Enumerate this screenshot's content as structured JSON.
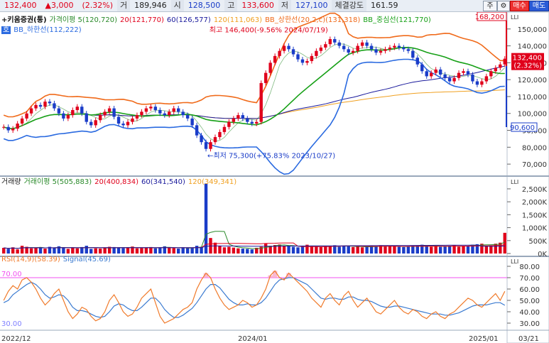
{
  "quote": {
    "price": "132,400",
    "change": "▲3,000",
    "change_pct": "(2.32%)",
    "volume_label": "거",
    "volume": "189,946",
    "open_label": "시",
    "open": "128,500",
    "high_label": "고",
    "high": "133,600",
    "low_label": "저",
    "low": "127,100",
    "strength_label": "체결강도",
    "strength": "161.59",
    "btn_jong": "주",
    "btn_gear": "⚙",
    "btn_buy": "매수",
    "btn_sell": "매도"
  },
  "colors": {
    "up": "#e0001b",
    "down": "#1a3cc8",
    "ma5": "#2a8a2a",
    "ma20": "#e0001b",
    "ma60": "#1a1a9c",
    "ma120": "#f0a020",
    "bb_upper": "#f06a1a",
    "bb_mid": "#16a016",
    "bb_lower": "#2a6ae0",
    "rsi": "#f07a2a",
    "signal": "#3a7ad0",
    "rsi_ref": "#f050f0"
  },
  "price_panel": {
    "title": "+키움증권(통)",
    "legend": [
      {
        "key": "ma5",
        "text": "가격이평 5(120,720)"
      },
      {
        "key": "ma20",
        "text": "20(121,770)"
      },
      {
        "key": "ma60",
        "text": "60(126,577)"
      },
      {
        "key": "ma120",
        "text": "120(111,063)"
      },
      {
        "key": "bb_upper",
        "text": "BB_상한선(20,2,c)(131,318)"
      },
      {
        "key": "bb_mid",
        "text": "BB_중심선(121,770)"
      }
    ],
    "legend2": {
      "key": "bb_lower",
      "prefix": "호",
      "text": "BB_하한선(112,222)"
    },
    "high_note": "최고 146,400(-9.56% 2024/07/19)",
    "low_note": "←최저 75,300(+75.83% 2023/10/27)",
    "box_top": "168,200",
    "box_bottom": "90,600",
    "current_tag": "132,400",
    "current_pct": "(2.32%)",
    "y_ticks": [
      "150,000",
      "140,000",
      "130,000",
      "120,000",
      "110,000",
      "100,000",
      "90,000",
      "80,000",
      "70,000"
    ]
  },
  "volume_panel": {
    "legend": [
      {
        "key": "label",
        "text": "거래량"
      },
      {
        "key": "ma5",
        "text": "거래이평 5(505,883)"
      },
      {
        "key": "ma20",
        "text": "20(400,834)"
      },
      {
        "key": "ma60",
        "text": "60(341,540)"
      },
      {
        "key": "ma120",
        "text": "120(349,341)"
      }
    ],
    "y_ticks": [
      "2,500K",
      "2,000K",
      "1,500K",
      "1,000K",
      "500K",
      "0K"
    ]
  },
  "rsi_panel": {
    "legend": [
      {
        "key": "rsi",
        "text": "RSI(14,9)(58.39)"
      },
      {
        "key": "signal",
        "text": "Signal(45.69)"
      }
    ],
    "ref_high": "70.00",
    "ref_low": "30.00",
    "y_ticks": [
      "80.00",
      "70.00",
      "60.00",
      "50.00",
      "40.00",
      "30.00"
    ]
  },
  "x_axis": {
    "labels": [
      "2022/12",
      "2024/01",
      "2025/01"
    ],
    "last": "03/21",
    "lli": "LLI"
  },
  "chart_data": {
    "type": "candlestick",
    "x_labels": [
      "2022/12",
      "2024/01",
      "2025/01"
    ],
    "price_ylim": [
      65000,
      160000
    ],
    "close": [
      92000,
      90000,
      91000,
      94000,
      97000,
      100000,
      103000,
      105000,
      104000,
      107000,
      106000,
      103000,
      100000,
      97000,
      99000,
      102000,
      104000,
      100000,
      95000,
      93000,
      96000,
      99000,
      101000,
      103000,
      98000,
      94000,
      93000,
      95000,
      97000,
      99000,
      101000,
      103000,
      104000,
      102000,
      100000,
      99000,
      101000,
      103000,
      101000,
      99000,
      97000,
      93000,
      87000,
      83000,
      79000,
      83000,
      86000,
      89000,
      92000,
      95000,
      97000,
      99000,
      97000,
      95000,
      94000,
      95000,
      118000,
      124000,
      130000,
      134000,
      137000,
      140000,
      138000,
      135000,
      132000,
      130000,
      131000,
      134000,
      137000,
      139000,
      141000,
      144000,
      142000,
      140000,
      138000,
      136000,
      137000,
      140000,
      142000,
      140000,
      138000,
      136000,
      137000,
      138000,
      139000,
      140000,
      139000,
      138000,
      137000,
      133000,
      129000,
      125000,
      122000,
      124000,
      126000,
      123000,
      121000,
      119000,
      121000,
      124000,
      125000,
      123000,
      119000,
      117000,
      119000,
      122000,
      125000,
      127000,
      129000,
      132400
    ],
    "volume_k": [
      220,
      180,
      240,
      160,
      300,
      260,
      200,
      210,
      240,
      190,
      260,
      210,
      280,
      230,
      180,
      240,
      200,
      250,
      300,
      180,
      200,
      190,
      230,
      260,
      250,
      220,
      210,
      230,
      270,
      200,
      210,
      230,
      250,
      200,
      240,
      280,
      220,
      210,
      190,
      240,
      210,
      230,
      300,
      260,
      2700,
      600,
      420,
      300,
      240,
      260,
      230,
      200,
      190,
      180,
      160,
      220,
      260,
      380,
      300,
      330,
      350,
      300,
      280,
      260,
      240,
      300,
      340,
      280,
      260,
      250,
      280,
      300,
      320,
      260,
      300,
      280,
      250,
      270,
      240,
      260,
      300,
      280,
      320,
      270,
      280,
      300,
      260,
      250,
      280,
      300,
      320,
      340,
      280,
      260,
      300,
      260,
      280,
      300,
      320,
      260,
      280,
      300,
      340,
      360,
      380,
      300,
      320,
      380,
      420,
      800
    ],
    "rsi": [
      50,
      58,
      63,
      60,
      68,
      70,
      66,
      60,
      52,
      46,
      50,
      56,
      60,
      50,
      40,
      34,
      38,
      44,
      42,
      36,
      32,
      34,
      40,
      50,
      55,
      48,
      40,
      36,
      38,
      44,
      52,
      56,
      60,
      48,
      36,
      30,
      32,
      34,
      38,
      42,
      44,
      48,
      60,
      68,
      74,
      70,
      60,
      52,
      46,
      42,
      44,
      46,
      50,
      48,
      44,
      46,
      52,
      60,
      72,
      76,
      70,
      68,
      74,
      70,
      66,
      62,
      58,
      52,
      48,
      44,
      52,
      56,
      50,
      46,
      54,
      58,
      50,
      44,
      48,
      52,
      46,
      40,
      38,
      42,
      46,
      50,
      44,
      40,
      38,
      42,
      40,
      36,
      34,
      38,
      40,
      36,
      34,
      38,
      40,
      44,
      48,
      52,
      50,
      46,
      44,
      48,
      52,
      56,
      50,
      58
    ],
    "signal": [
      48,
      50,
      55,
      58,
      61,
      64,
      66,
      64,
      60,
      55,
      52,
      53,
      55,
      54,
      50,
      44,
      41,
      41,
      40,
      38,
      36,
      35,
      36,
      40,
      45,
      47,
      46,
      43,
      41,
      41,
      44,
      48,
      52,
      52,
      48,
      42,
      38,
      35,
      35,
      37,
      40,
      43,
      48,
      54,
      60,
      64,
      64,
      61,
      56,
      51,
      48,
      46,
      46,
      47,
      46,
      46,
      48,
      52,
      58,
      64,
      68,
      69,
      70,
      70,
      68,
      66,
      64,
      60,
      56,
      52,
      51,
      52,
      52,
      51,
      51,
      53,
      53,
      51,
      50,
      50,
      49,
      47,
      45,
      44,
      44,
      45,
      45,
      44,
      43,
      42,
      41,
      40,
      39,
      38,
      38,
      38,
      37,
      37,
      38,
      39,
      41,
      43,
      45,
      46,
      46,
      46,
      47,
      48,
      48,
      45.69
    ]
  }
}
